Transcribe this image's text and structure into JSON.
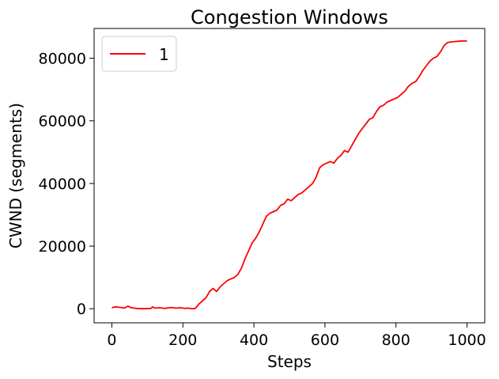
{
  "chart_data": {
    "type": "line",
    "title": "Congestion Windows",
    "xlabel": "Steps",
    "ylabel": "CWND (segments)",
    "xlim": [
      -50,
      1050
    ],
    "ylim": [
      -4500,
      89500
    ],
    "xticks": [
      0,
      200,
      400,
      600,
      800,
      1000
    ],
    "yticks": [
      0,
      20000,
      40000,
      60000,
      80000
    ],
    "legend_position": "upper-left",
    "grid": false,
    "series": [
      {
        "name": "1",
        "color": "#ff0000",
        "x": [
          0,
          10,
          25,
          35,
          45,
          55,
          70,
          90,
          110,
          115,
          120,
          135,
          150,
          165,
          180,
          195,
          205,
          215,
          225,
          235,
          245,
          255,
          265,
          275,
          285,
          295,
          305,
          315,
          325,
          335,
          345,
          355,
          365,
          375,
          385,
          395,
          405,
          415,
          425,
          435,
          445,
          455,
          465,
          475,
          485,
          495,
          505,
          515,
          525,
          535,
          545,
          555,
          565,
          575,
          585,
          595,
          605,
          615,
          625,
          635,
          645,
          655,
          665,
          675,
          685,
          695,
          705,
          715,
          725,
          735,
          745,
          755,
          765,
          775,
          785,
          795,
          805,
          815,
          825,
          835,
          845,
          855,
          865,
          875,
          885,
          895,
          905,
          915,
          925,
          935,
          945,
          955,
          965,
          975,
          985,
          995,
          1000
        ],
        "y": [
          300,
          600,
          400,
          200,
          800,
          300,
          100,
          0,
          100,
          600,
          200,
          300,
          100,
          400,
          200,
          300,
          100,
          200,
          0,
          100,
          1500,
          2500,
          3500,
          5500,
          6500,
          5500,
          7000,
          8000,
          9000,
          9500,
          10000,
          11000,
          13000,
          16000,
          18500,
          21000,
          22500,
          24500,
          27000,
          29500,
          30500,
          31000,
          31500,
          33000,
          33500,
          35000,
          34500,
          35500,
          36500,
          37000,
          38000,
          39000,
          40000,
          42000,
          45000,
          46000,
          46500,
          47000,
          46500,
          48000,
          49000,
          50500,
          50000,
          52000,
          54000,
          56000,
          57500,
          59000,
          60500,
          61000,
          63000,
          64500,
          65000,
          66000,
          66500,
          67000,
          67500,
          68500,
          69500,
          71000,
          72000,
          72500,
          74000,
          76000,
          77500,
          79000,
          80000,
          80500,
          82000,
          84000,
          85000,
          85200,
          85300,
          85400,
          85500,
          85500,
          85500
        ]
      }
    ]
  }
}
